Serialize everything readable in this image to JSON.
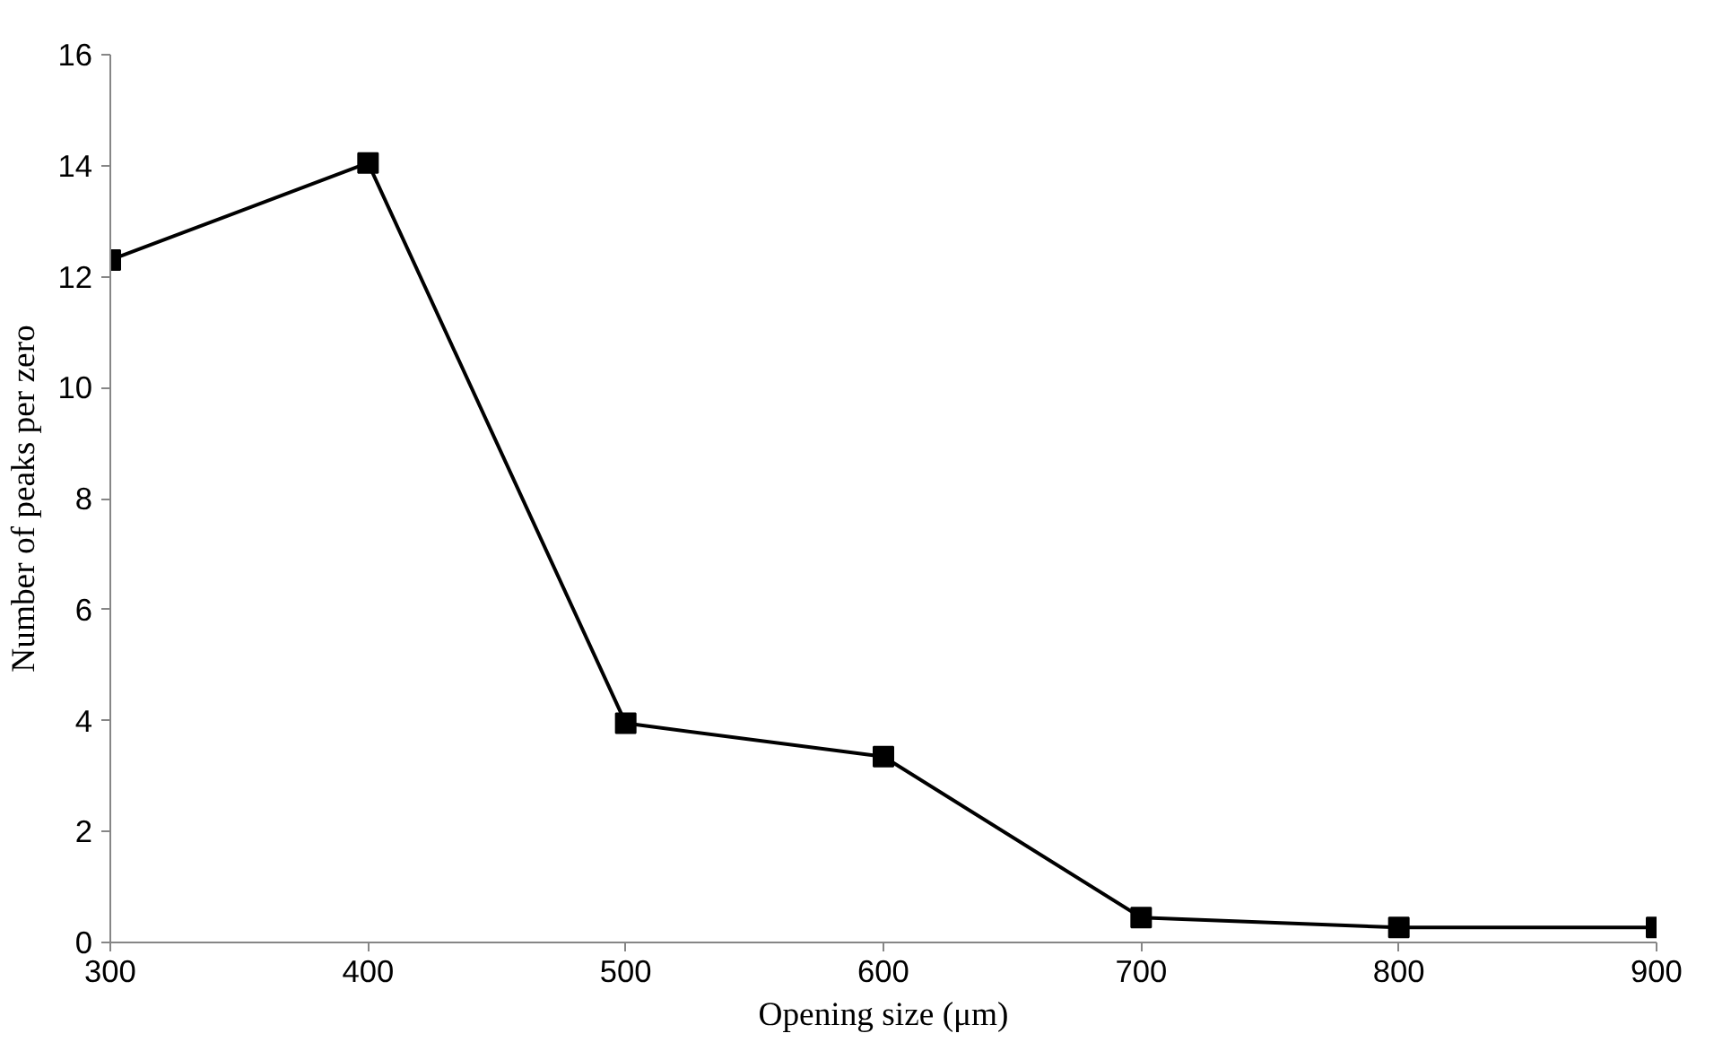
{
  "chart_data": {
    "type": "line",
    "xlabel": "Opening size (μm)",
    "ylabel": "Number of peaks per zero",
    "x": [
      300,
      400,
      500,
      600,
      700,
      800,
      900
    ],
    "series": [
      {
        "color": "#000000",
        "values": [
          12.3,
          14.05,
          3.95,
          3.35,
          0.45,
          0.27,
          0.27
        ]
      }
    ],
    "xlim": [
      300,
      900
    ],
    "xticks": [
      300,
      400,
      500,
      600,
      700,
      800,
      900
    ],
    "ylim": [
      0,
      16
    ],
    "yticks": [
      0,
      2,
      4,
      6,
      8,
      10,
      12,
      14,
      16
    ],
    "grid": false,
    "marker": "square",
    "line_style": "solid"
  }
}
